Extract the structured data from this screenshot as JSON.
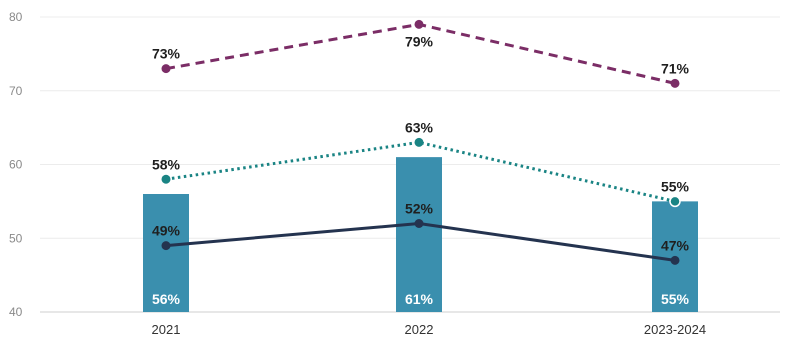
{
  "chart_data": {
    "type": "bar",
    "categories": [
      "2021",
      "2022",
      "2023-2024"
    ],
    "ylim": [
      40,
      80
    ],
    "yticks": [
      40,
      50,
      60,
      70,
      80
    ],
    "grid": true,
    "bar_series": {
      "values": [
        56,
        61,
        55
      ],
      "labels": [
        "56%",
        "61%",
        "55%"
      ],
      "color": "#3a8fae"
    },
    "line_series": [
      {
        "style": "dashed",
        "color": "#7b2d66",
        "values": [
          73,
          79,
          71
        ],
        "labels": [
          "73%",
          "79%",
          "71%"
        ]
      },
      {
        "style": "dotted",
        "color": "#1a8484",
        "values": [
          58,
          63,
          55
        ],
        "labels": [
          "58%",
          "63%",
          "55%"
        ]
      },
      {
        "style": "solid",
        "color": "#24334f",
        "values": [
          49,
          52,
          47
        ],
        "labels": [
          "49%",
          "52%",
          "47%"
        ]
      }
    ]
  }
}
